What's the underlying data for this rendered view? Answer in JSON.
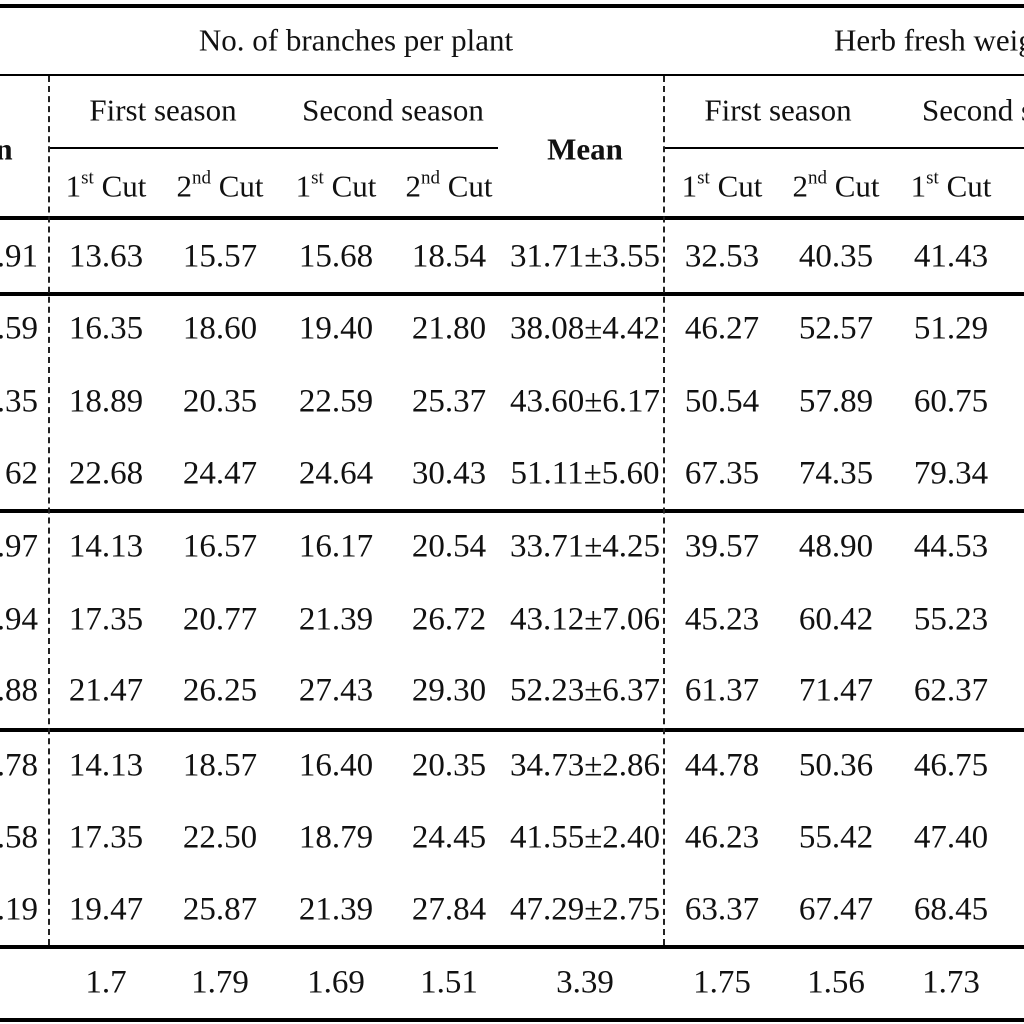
{
  "header": {
    "group1_title": "No. of branches per plant",
    "group2_title": "Herb fresh weigh",
    "first_season": "First season",
    "second_season": "Second season",
    "second_season_clipped": "Second s",
    "mean": "Mean",
    "first_col_fragment": "n",
    "cut_1_base": "1",
    "cut_1_sup": "st",
    "cut_2_base": "2",
    "cut_2_sup": "nd",
    "cut_word": " Cut"
  },
  "rows": [
    {
      "lead": ".91",
      "b1": "13.63",
      "b2": "15.57",
      "b3": "15.68",
      "b4": "18.54",
      "mean": "31.71±3.55",
      "h1": "32.53",
      "h2": "40.35",
      "h3": "41.43"
    },
    {
      "lead": ".59",
      "b1": "16.35",
      "b2": "18.60",
      "b3": "19.40",
      "b4": "21.80",
      "mean": "38.08±4.42",
      "h1": "46.27",
      "h2": "52.57",
      "h3": "51.29"
    },
    {
      "lead": ".35",
      "b1": "18.89",
      "b2": "20.35",
      "b3": "22.59",
      "b4": "25.37",
      "mean": "43.60±6.17",
      "h1": "50.54",
      "h2": "57.89",
      "h3": "60.75"
    },
    {
      "lead": "62",
      "b1": "22.68",
      "b2": "24.47",
      "b3": "24.64",
      "b4": "30.43",
      "mean": "51.11±5.60",
      "h1": "67.35",
      "h2": "74.35",
      "h3": "79.34"
    },
    {
      "lead": ".97",
      "b1": "14.13",
      "b2": "16.57",
      "b3": "16.17",
      "b4": "20.54",
      "mean": "33.71±4.25",
      "h1": "39.57",
      "h2": "48.90",
      "h3": "44.53"
    },
    {
      "lead": ".94",
      "b1": "17.35",
      "b2": "20.77",
      "b3": "21.39",
      "b4": "26.72",
      "mean": "43.12±7.06",
      "h1": "45.23",
      "h2": "60.42",
      "h3": "55.23"
    },
    {
      "lead": ".88",
      "b1": "21.47",
      "b2": "26.25",
      "b3": "27.43",
      "b4": "29.30",
      "mean": "52.23±6.37",
      "h1": "61.37",
      "h2": "71.47",
      "h3": "62.37"
    },
    {
      "lead": ".78",
      "b1": "14.13",
      "b2": "18.57",
      "b3": "16.40",
      "b4": "20.35",
      "mean": "34.73±2.86",
      "h1": "44.78",
      "h2": "50.36",
      "h3": "46.75"
    },
    {
      "lead": ".58",
      "b1": "17.35",
      "b2": "22.50",
      "b3": "18.79",
      "b4": "24.45",
      "mean": "41.55±2.40",
      "h1": "46.23",
      "h2": "55.42",
      "h3": "47.40"
    },
    {
      "lead": ".19",
      "b1": "19.47",
      "b2": "25.87",
      "b3": "21.39",
      "b4": "27.84",
      "mean": "47.29±2.75",
      "h1": "63.37",
      "h2": "67.47",
      "h3": "68.45"
    }
  ],
  "lsd_row": {
    "b1": "1.7",
    "b2": "1.79",
    "b3": "1.69",
    "b4": "1.51",
    "mean": "3.39",
    "h1": "1.75",
    "h2": "1.56",
    "h3": "1.73"
  }
}
